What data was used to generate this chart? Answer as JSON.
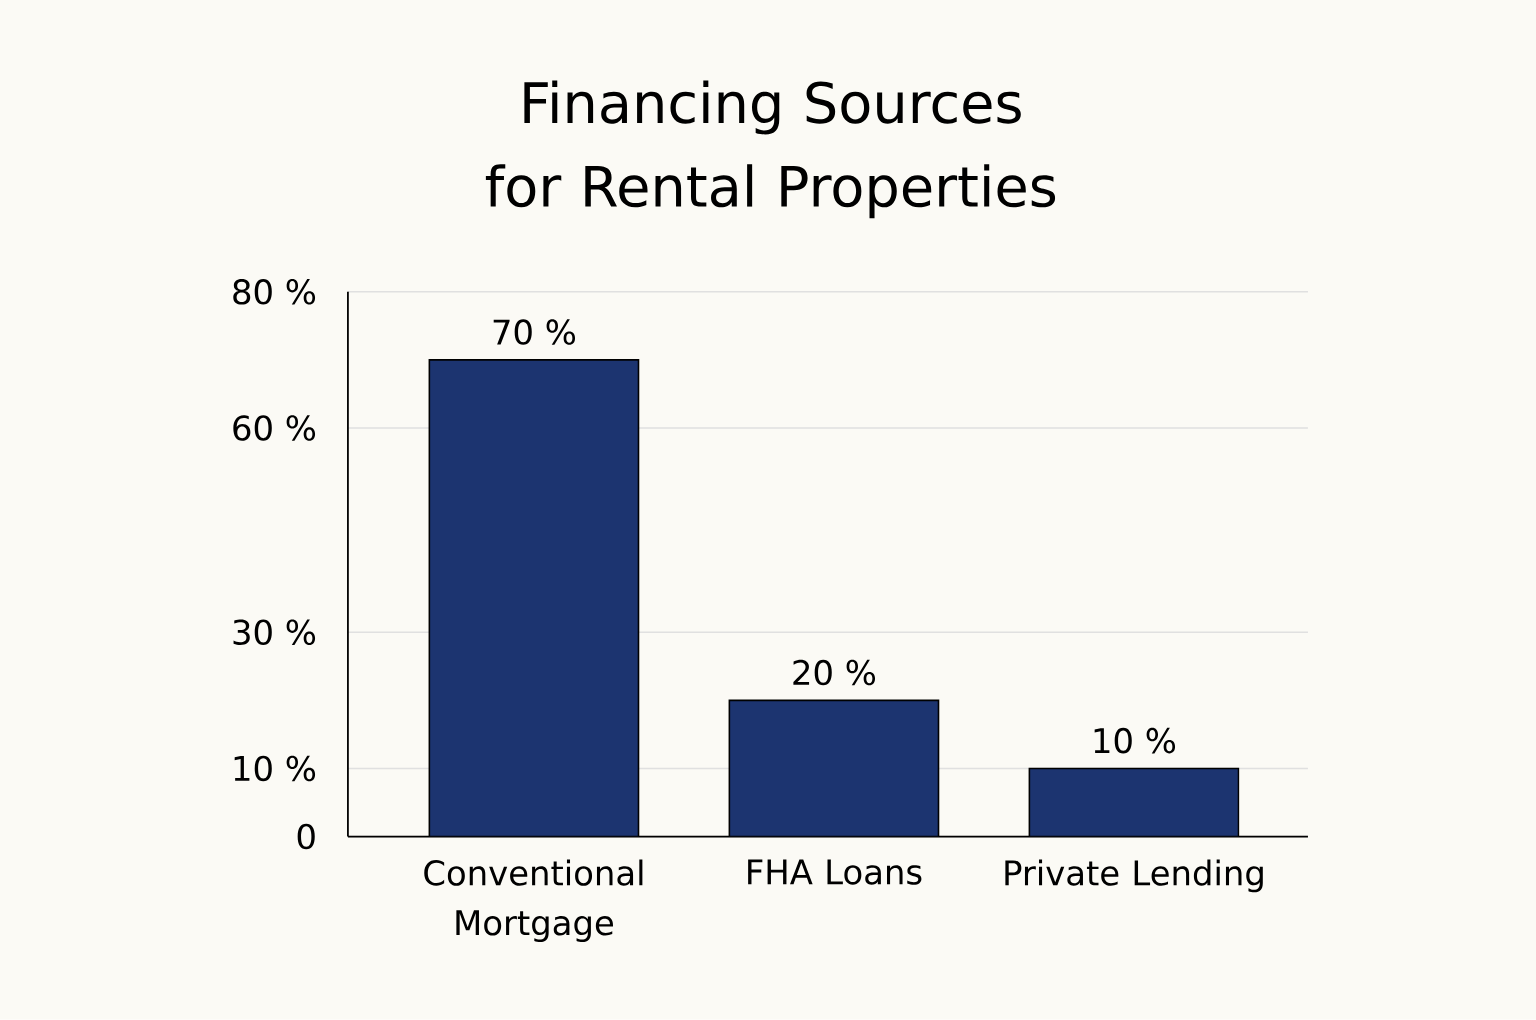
{
  "chart_data": {
    "type": "bar",
    "title": "Financing Sources for Rental Properties",
    "categories": [
      "Conventional Mortgage",
      "FHA Loans",
      "Private Lending"
    ],
    "values": [
      70,
      20,
      10
    ],
    "value_labels": [
      "70 %",
      "20 %",
      "10 %"
    ],
    "color": "#1c3470",
    "ylim": [
      0,
      80
    ],
    "yticks": [
      0,
      {
        "value": 10,
        "label": "10 %"
      },
      {
        "value": 30,
        "label": "30 %"
      },
      {
        "value": 60,
        "label": "60 %"
      },
      {
        "value": 80,
        "label": "80 %"
      }
    ],
    "grid": "y"
  }
}
